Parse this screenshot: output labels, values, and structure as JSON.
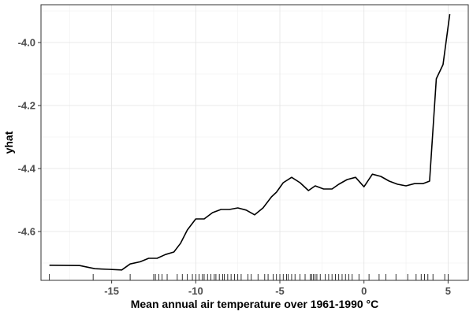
{
  "chart_data": {
    "type": "line",
    "title": "",
    "xlabel": "Mean annual air temperature over 1961-1990 °C",
    "ylabel": "yhat",
    "xlim": [
      -19.2,
      6.2
    ],
    "ylim": [
      -4.755,
      -3.88
    ],
    "x_ticks": [
      -15,
      -10,
      -5,
      0,
      5
    ],
    "x_tick_labels": [
      "-15",
      "-10",
      "-5",
      "0",
      "5"
    ],
    "y_ticks": [
      -4.0,
      -4.2,
      -4.4,
      -4.6
    ],
    "y_tick_labels": [
      "-4.0",
      "-4.2",
      "-4.4",
      "-4.6"
    ],
    "grid": true,
    "legend": "none",
    "series": [
      {
        "color": "#000000",
        "x": [
          -18.7,
          -16.9,
          -16.0,
          -15.2,
          -14.4,
          -13.9,
          -13.3,
          -12.8,
          -12.3,
          -11.8,
          -11.3,
          -10.9,
          -10.5,
          -10.0,
          -9.5,
          -9.0,
          -8.5,
          -8.0,
          -7.5,
          -7.0,
          -6.5,
          -6.0,
          -5.5,
          -5.2,
          -4.8,
          -4.3,
          -3.8,
          -3.3,
          -2.9,
          -2.4,
          -1.9,
          -1.5,
          -1.0,
          -0.5,
          0.0,
          0.5,
          1.0,
          1.5,
          2.0,
          2.5,
          3.0,
          3.5,
          3.9,
          4.3,
          4.7,
          5.1
        ],
        "y": [
          -4.707,
          -4.708,
          -4.718,
          -4.72,
          -4.722,
          -4.703,
          -4.696,
          -4.685,
          -4.685,
          -4.673,
          -4.665,
          -4.637,
          -4.595,
          -4.56,
          -4.56,
          -4.54,
          -4.53,
          -4.53,
          -4.525,
          -4.532,
          -4.547,
          -4.525,
          -4.49,
          -4.475,
          -4.445,
          -4.428,
          -4.445,
          -4.47,
          -4.455,
          -4.465,
          -4.465,
          -4.45,
          -4.435,
          -4.428,
          -4.458,
          -4.418,
          -4.425,
          -4.44,
          -4.45,
          -4.455,
          -4.448,
          -4.448,
          -4.44,
          -4.115,
          -4.07,
          -3.91
        ]
      }
    ],
    "rug_x": [
      -18.7,
      -16.1,
      -13.9,
      -12.5,
      -12.4,
      -12.2,
      -12.0,
      -11.7,
      -11.1,
      -10.8,
      -10.5,
      -10.2,
      -10.0,
      -9.8,
      -9.6,
      -9.5,
      -9.3,
      -9.1,
      -8.9,
      -8.8,
      -8.6,
      -8.4,
      -8.3,
      -8.1,
      -7.9,
      -7.7,
      -7.5,
      -7.3,
      -6.9,
      -6.7,
      -6.3,
      -5.9,
      -5.7,
      -5.4,
      -5.2,
      -5.0,
      -4.8,
      -4.6,
      -4.5,
      -4.3,
      -4.1,
      -3.8,
      -3.5,
      -3.2,
      -3.1,
      -3.0,
      -2.9,
      -2.8,
      -2.6,
      -2.3,
      -2.1,
      -1.9,
      -1.7,
      -1.5,
      -1.3,
      -1.1,
      -0.9,
      -0.7,
      -0.3,
      0.3,
      0.9,
      1.3,
      1.9,
      2.6,
      3.1,
      3.4,
      3.6,
      3.8,
      4.1,
      4.8,
      5.0
    ]
  }
}
